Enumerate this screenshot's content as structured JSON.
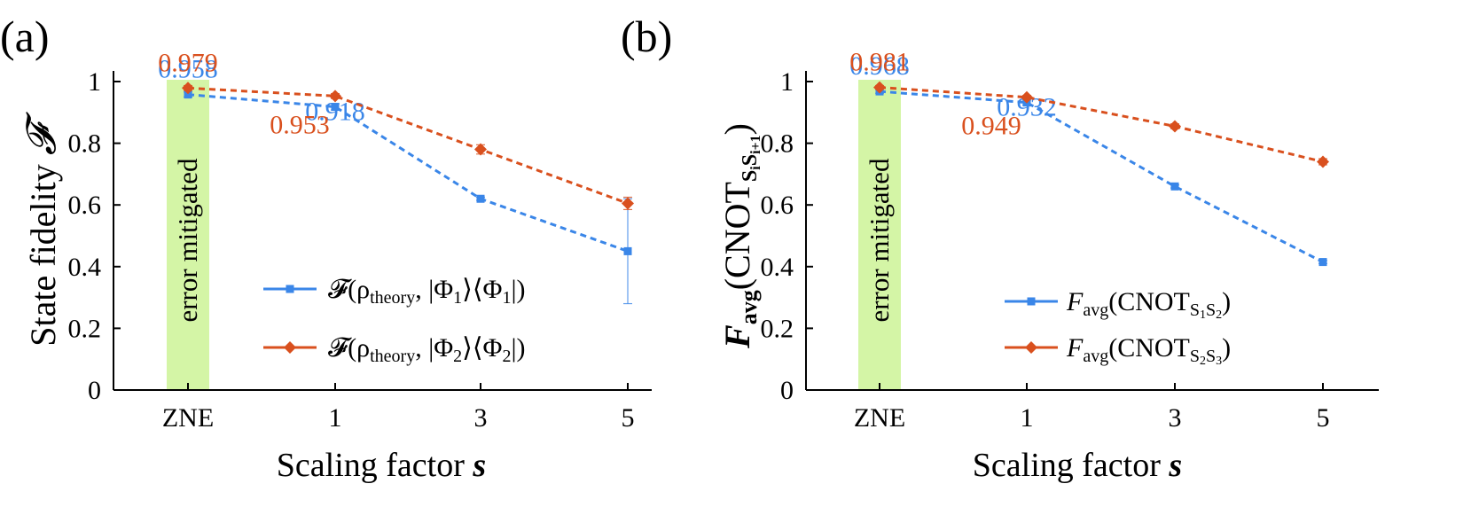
{
  "chart_data": [
    {
      "type": "line",
      "panel_label": "(a)",
      "title": "",
      "xlabel": "Scaling factor",
      "xlabel_var": "s",
      "ylabel": "State fidelity",
      "ylabel_var": "𝓕",
      "categories": [
        "ZNE",
        "1",
        "3",
        "5"
      ],
      "ylim": [
        0,
        1
      ],
      "yticks": [
        "0",
        "0.2",
        "0.4",
        "0.6",
        "0.8",
        "1"
      ],
      "shaded_band": {
        "category": "ZNE",
        "label": "error mitigated",
        "color": "#d4f5a6"
      },
      "series": [
        {
          "name": "𝓕(ρtheory, |Φ1⟩⟨Φ1|)",
          "legend": {
            "prefix": "𝓕(ρ",
            "sub": "theory",
            "mid": ", |Φ",
            "sub2": "1",
            "mid2": "⟩⟨Φ",
            "sub3": "1",
            "suffix": "|)"
          },
          "color": "#3a86e8",
          "marker": "square",
          "values": [
            0.958,
            0.918,
            0.62,
            0.45
          ],
          "errors": [
            0.008,
            0.01,
            0.005,
            0.17
          ],
          "labels": [
            {
              "index": 0,
              "text": "0.958"
            },
            {
              "index": 1,
              "text": "0.918"
            }
          ]
        },
        {
          "name": "𝓕(ρtheory, |Φ2⟩⟨Φ2|)",
          "legend": {
            "prefix": "𝓕(ρ",
            "sub": "theory",
            "mid": ", |Φ",
            "sub2": "2",
            "mid2": "⟩⟨Φ",
            "sub3": "2",
            "suffix": "|)"
          },
          "color": "#d9501e",
          "marker": "diamond",
          "values": [
            0.979,
            0.953,
            0.78,
            0.605
          ],
          "errors": [
            0.008,
            0.008,
            0.015,
            0.02
          ],
          "labels": [
            {
              "index": 0,
              "text": "0.979"
            },
            {
              "index": 1,
              "text": "0.953"
            }
          ]
        }
      ]
    },
    {
      "type": "line",
      "panel_label": "(b)",
      "title": "",
      "xlabel": "Scaling factor",
      "xlabel_var": "s",
      "ylabel": "Favg(CNOTSiSi+1)",
      "ylabel_parts": {
        "F": "F",
        "avg": "avg",
        "open": "(CNOT",
        "sub": "S",
        "sub_i": "i",
        "sub2": "S",
        "sub_i1": "i+1",
        "close": ")"
      },
      "categories": [
        "ZNE",
        "1",
        "3",
        "5"
      ],
      "ylim": [
        0,
        1
      ],
      "yticks": [
        "0",
        "0.2",
        "0.4",
        "0.6",
        "0.8",
        "1"
      ],
      "shaded_band": {
        "category": "ZNE",
        "label": "error mitigated",
        "color": "#d4f5a6"
      },
      "series": [
        {
          "name": "Favg(CNOTS1S2)",
          "legend": {
            "F": "F",
            "avg": "avg",
            "open": "(CNOT",
            "s1": "S",
            "i1": "1",
            "s2": "S",
            "i2": "2",
            "close": ")"
          },
          "color": "#3a86e8",
          "marker": "square",
          "values": [
            0.968,
            0.932,
            0.66,
            0.415
          ],
          "errors": [
            0.006,
            0.008,
            0.005,
            0.005
          ],
          "labels": [
            {
              "index": 0,
              "text": "0.968"
            },
            {
              "index": 1,
              "text": "0.932"
            }
          ]
        },
        {
          "name": "Favg(CNOTS2S3)",
          "legend": {
            "F": "F",
            "avg": "avg",
            "open": "(CNOT",
            "s1": "S",
            "i1": "2",
            "s2": "S",
            "i2": "3",
            "close": ")"
          },
          "color": "#d9501e",
          "marker": "diamond",
          "values": [
            0.981,
            0.949,
            0.855,
            0.74
          ],
          "errors": [
            0.006,
            0.006,
            0.008,
            0.01
          ],
          "labels": [
            {
              "index": 0,
              "text": "0.981"
            },
            {
              "index": 1,
              "text": "0.949"
            }
          ]
        }
      ]
    }
  ]
}
